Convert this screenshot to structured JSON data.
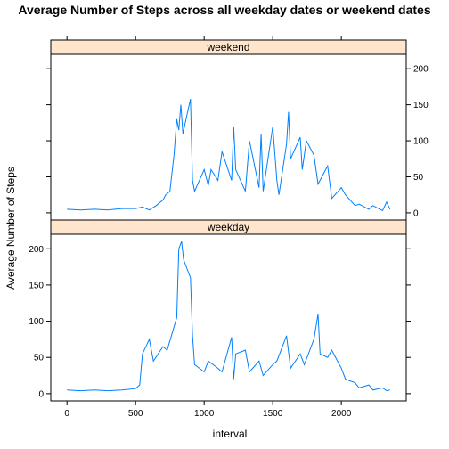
{
  "chart_data": {
    "type": "line",
    "title": "Average Number of Steps across all weekday dates or weekend dates",
    "xlabel": "interval",
    "ylabel": "Average Number of Steps",
    "x_ticks": [
      0,
      500,
      1000,
      1500,
      2000
    ],
    "y_ticks": [
      0,
      50,
      100,
      150,
      200
    ],
    "xlim": [
      -118,
      2473
    ],
    "ylim": [
      -10,
      220
    ],
    "line_color": "#0080ff",
    "strip_color": "#ffe5cc",
    "panels": [
      {
        "name": "weekend",
        "x": [
          0,
          100,
          200,
          300,
          400,
          500,
          550,
          600,
          650,
          700,
          720,
          750,
          780,
          800,
          815,
          830,
          845,
          900,
          915,
          930,
          1000,
          1030,
          1050,
          1100,
          1130,
          1200,
          1215,
          1230,
          1300,
          1330,
          1400,
          1415,
          1430,
          1500,
          1530,
          1545,
          1600,
          1615,
          1630,
          1700,
          1715,
          1745,
          1800,
          1830,
          1900,
          1930,
          2000,
          2030,
          2100,
          2130,
          2200,
          2230,
          2300,
          2330,
          2355
        ],
        "values": [
          5,
          4,
          5,
          4,
          6,
          6,
          8,
          4,
          10,
          18,
          25,
          30,
          80,
          130,
          115,
          150,
          110,
          158,
          45,
          30,
          60,
          38,
          60,
          45,
          85,
          45,
          120,
          60,
          30,
          100,
          35,
          110,
          30,
          120,
          45,
          25,
          95,
          140,
          75,
          105,
          60,
          100,
          80,
          40,
          65,
          20,
          35,
          25,
          10,
          12,
          5,
          10,
          3,
          15,
          5
        ]
      },
      {
        "name": "weekday",
        "x": [
          0,
          100,
          200,
          300,
          400,
          500,
          530,
          550,
          600,
          630,
          700,
          730,
          800,
          815,
          835,
          850,
          900,
          915,
          930,
          1000,
          1030,
          1100,
          1130,
          1200,
          1215,
          1230,
          1300,
          1330,
          1400,
          1430,
          1500,
          1530,
          1600,
          1630,
          1700,
          1730,
          1800,
          1830,
          1845,
          1900,
          1930,
          2000,
          2030,
          2100,
          2130,
          2200,
          2230,
          2300,
          2330,
          2355
        ],
        "values": [
          5,
          4,
          5,
          4,
          5,
          7,
          12,
          55,
          75,
          45,
          65,
          60,
          105,
          200,
          210,
          185,
          160,
          80,
          40,
          30,
          45,
          35,
          30,
          78,
          20,
          55,
          60,
          30,
          45,
          25,
          40,
          45,
          80,
          35,
          55,
          40,
          75,
          110,
          55,
          50,
          60,
          35,
          20,
          15,
          8,
          12,
          5,
          8,
          4,
          5
        ]
      }
    ]
  }
}
